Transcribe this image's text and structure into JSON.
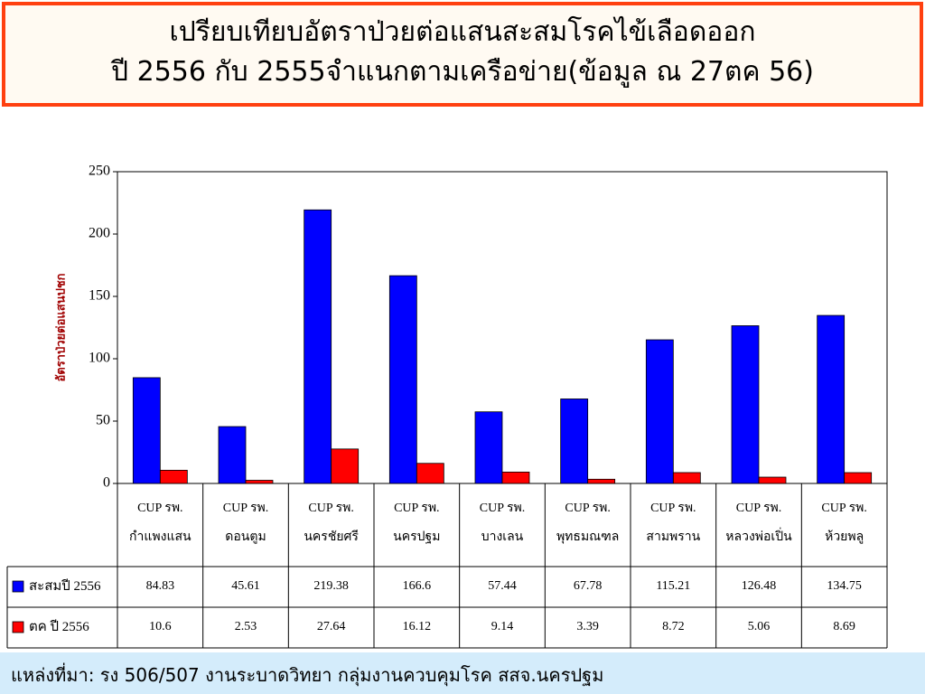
{
  "chart_data": {
    "type": "bar",
    "title": [
      "เปรียบเทียบอัตราป่วยต่อแสนสะสมโรคไข้เลือดออก",
      "ปี 2556  กับ 2555จำแนกตามเครือข่าย(ข้อมูล ณ 27ตค 56)"
    ],
    "y_label": "อัตราป่วยต่อแสนปชก",
    "categories": [
      "CUP รพ.\nกำแพงแสน",
      "CUP รพ.\nดอนตูม",
      "CUP รพ.\nนครชัยศรี",
      "CUP รพ.\nนครปฐม",
      "CUP รพ.\nบางเลน",
      "CUP รพ.\nพุทธมณฑล",
      "CUP รพ.\nสามพราน",
      "CUP รพ.\nหลวงพ่อเปิ่น",
      "CUP รพ.\nห้วยพลู"
    ],
    "series": [
      {
        "name": "สะสมปี 2556",
        "color": "#0000ff",
        "values": [
          84.83,
          45.61,
          219.38,
          166.6,
          57.44,
          67.78,
          115.21,
          126.48,
          134.75
        ]
      },
      {
        "name": "ตค ปี 2556",
        "color": "#ff0000",
        "values": [
          10.6,
          2.53,
          27.64,
          16.12,
          9.14,
          3.39,
          8.72,
          5.06,
          8.69
        ]
      }
    ],
    "ylim": [
      0,
      250
    ],
    "yticks": [
      0,
      50,
      100,
      150,
      200,
      250
    ],
    "grid": false,
    "source": "แหล่งที่มา: รง 506/507 งานระบาดวิทยา  กลุ่มงานควบคุมโรค  สสจ.นครปฐม"
  }
}
